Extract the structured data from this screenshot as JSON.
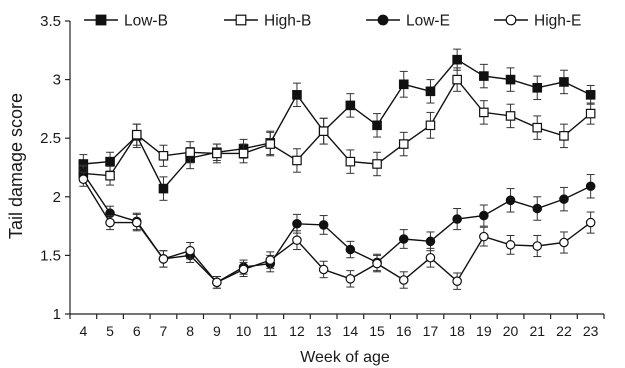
{
  "chart_data": {
    "type": "line",
    "title": "",
    "xlabel": "Week of age",
    "ylabel": "Tail damage score",
    "categories": [
      "4",
      "5",
      "6",
      "7",
      "8",
      "9",
      "10",
      "11",
      "12",
      "13",
      "14",
      "15",
      "16",
      "17",
      "18",
      "19",
      "20",
      "21",
      "22",
      "23"
    ],
    "ylim": [
      1,
      3.5
    ],
    "yticks": [
      "1",
      "1.5",
      "2",
      "2.5",
      "3",
      "3.5"
    ],
    "grid": false,
    "legend_position": "top",
    "series": [
      {
        "name": "Low-B",
        "marker": "square-filled",
        "values": [
          2.28,
          2.3,
          2.52,
          2.07,
          2.33,
          2.38,
          2.41,
          2.46,
          2.87,
          2.56,
          2.78,
          2.61,
          2.96,
          2.9,
          3.17,
          3.03,
          3.0,
          2.93,
          2.98,
          2.87
        ],
        "errors": [
          0.08,
          0.08,
          0.1,
          0.1,
          0.09,
          0.07,
          0.08,
          0.1,
          0.1,
          0.11,
          0.1,
          0.1,
          0.11,
          0.1,
          0.09,
          0.1,
          0.1,
          0.1,
          0.1,
          0.08
        ]
      },
      {
        "name": "High-B",
        "marker": "square-open",
        "values": [
          2.2,
          2.18,
          2.53,
          2.35,
          2.38,
          2.37,
          2.37,
          2.45,
          2.31,
          2.56,
          2.3,
          2.28,
          2.45,
          2.61,
          3.0,
          2.72,
          2.69,
          2.59,
          2.52,
          2.71
        ],
        "errors": [
          0.07,
          0.08,
          0.09,
          0.09,
          0.09,
          0.08,
          0.08,
          0.1,
          0.1,
          0.11,
          0.1,
          0.1,
          0.1,
          0.11,
          0.1,
          0.1,
          0.1,
          0.1,
          0.1,
          0.09
        ]
      },
      {
        "name": "Low-E",
        "marker": "circle-filled",
        "values": [
          2.2,
          1.86,
          1.79,
          1.47,
          1.5,
          1.27,
          1.4,
          1.43,
          1.77,
          1.76,
          1.55,
          1.44,
          1.64,
          1.62,
          1.81,
          1.84,
          1.97,
          1.9,
          1.98,
          2.09
        ],
        "errors": [
          0.06,
          0.06,
          0.07,
          0.07,
          0.06,
          0.05,
          0.06,
          0.07,
          0.08,
          0.08,
          0.07,
          0.07,
          0.08,
          0.08,
          0.09,
          0.09,
          0.1,
          0.1,
          0.1,
          0.1
        ]
      },
      {
        "name": "High-E",
        "marker": "circle-open",
        "values": [
          2.15,
          1.78,
          1.78,
          1.47,
          1.54,
          1.27,
          1.38,
          1.46,
          1.63,
          1.38,
          1.3,
          1.43,
          1.29,
          1.48,
          1.28,
          1.66,
          1.59,
          1.58,
          1.61,
          1.78
        ],
        "errors": [
          0.06,
          0.06,
          0.07,
          0.07,
          0.07,
          0.05,
          0.06,
          0.07,
          0.08,
          0.07,
          0.07,
          0.07,
          0.07,
          0.08,
          0.07,
          0.08,
          0.08,
          0.09,
          0.09,
          0.09
        ]
      }
    ]
  }
}
